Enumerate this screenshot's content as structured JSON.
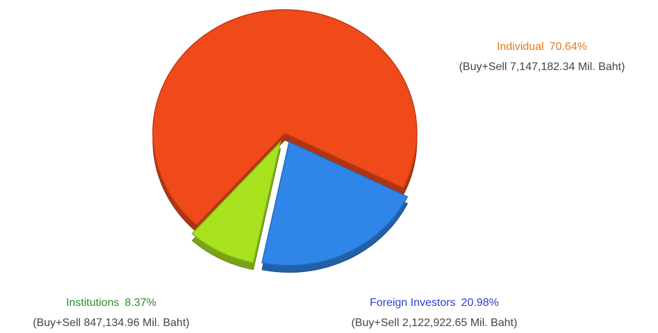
{
  "chart_data": {
    "type": "pie",
    "categories": [
      "Individual",
      "Foreign Investors",
      "Institutions"
    ],
    "values": [
      70.64,
      20.98,
      8.37
    ],
    "value_labels": [
      "70.64%",
      "20.98%",
      "8.37%"
    ],
    "notes": [
      "(Buy+Sell 7,147,182.34 Mil. Baht)",
      "(Buy+Sell 2,122,922.65 Mil. Baht)",
      "(Buy+Sell 847,134.96 Mil. Baht)"
    ],
    "colors": [
      "#f04a1a",
      "#2f86e8",
      "#a8e21e"
    ],
    "label_colors": [
      "#e8781c",
      "#2b3fd0",
      "#2a8a2a"
    ]
  }
}
